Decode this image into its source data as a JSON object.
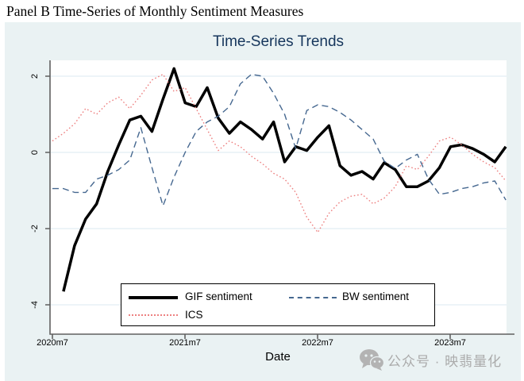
{
  "page": {
    "header": "Panel B Time-Series of Monthly Sentiment Measures"
  },
  "watermark": {
    "icon": "wechat-icon",
    "text": "公众号 · 映翡量化"
  },
  "colors": {
    "chart_background": "#eaf2f3",
    "plot_background": "#ffffff",
    "gridline": "#e2edf3",
    "axis": "#606060",
    "title": "#16365c",
    "gif_sentiment": "#000000",
    "bw_sentiment": "#466890",
    "ics": "#ed8080",
    "watermark": "#ababab"
  },
  "chart_data": {
    "type": "line",
    "title": "Time-Series Trends",
    "xlabel": "Date",
    "ylabel": "",
    "x_ticks": [
      "2020m7",
      "2021m7",
      "2022m7",
      "2023m7"
    ],
    "y_ticks": [
      "2",
      "0",
      "-2",
      "-4"
    ],
    "y_tick_values": [
      2,
      0,
      -2,
      -4
    ],
    "ylim": [
      -4.8,
      2.4
    ],
    "grid": "horizontal",
    "legend_position": "inside-bottom-left",
    "x_months": [
      "2020m7",
      "2020m8",
      "2020m9",
      "2020m10",
      "2020m11",
      "2020m12",
      "2021m1",
      "2021m2",
      "2021m3",
      "2021m4",
      "2021m5",
      "2021m6",
      "2021m7",
      "2021m8",
      "2021m9",
      "2021m10",
      "2021m11",
      "2021m12",
      "2022m1",
      "2022m2",
      "2022m3",
      "2022m4",
      "2022m5",
      "2022m6",
      "2022m7",
      "2022m8",
      "2022m9",
      "2022m10",
      "2022m11",
      "2022m12",
      "2023m1",
      "2023m2",
      "2023m3",
      "2023m4",
      "2023m5",
      "2023m6",
      "2023m7",
      "2023m8",
      "2023m9",
      "2023m10",
      "2023m11",
      "2023m12"
    ],
    "series": [
      {
        "name": "GIF sentiment",
        "style": "solid",
        "color": "#000000",
        "width": 3.5,
        "start_index": 1,
        "values": [
          -3.65,
          -2.45,
          -1.75,
          -1.35,
          -0.5,
          0.2,
          0.85,
          0.95,
          0.55,
          1.4,
          2.2,
          1.3,
          1.2,
          1.7,
          0.9,
          0.5,
          0.8,
          0.6,
          0.35,
          0.8,
          -0.25,
          0.15,
          0.05,
          0.4,
          0.7,
          -0.35,
          -0.6,
          -0.5,
          -0.7,
          -0.27,
          -0.45,
          -0.9,
          -0.9,
          -0.75,
          -0.4,
          0.15,
          0.2,
          0.1,
          -0.05,
          -0.25,
          0.15
        ]
      },
      {
        "name": "BW sentiment",
        "style": "dashed",
        "color": "#466890",
        "width": 1.4,
        "start_index": 0,
        "values": [
          -0.95,
          -0.95,
          -1.05,
          -1.05,
          -0.7,
          -0.6,
          -0.45,
          -0.2,
          0.65,
          -0.4,
          -1.4,
          -0.65,
          0.0,
          0.55,
          0.8,
          0.95,
          1.2,
          1.8,
          2.05,
          2.0,
          1.55,
          1.0,
          0.1,
          1.1,
          1.25,
          1.2,
          1.05,
          0.85,
          0.6,
          0.35,
          -0.23,
          -0.42,
          -0.2,
          -0.05,
          -0.7,
          -1.1,
          -1.05,
          -0.95,
          -0.9,
          -0.8,
          -0.75,
          -1.25
        ]
      },
      {
        "name": "ICS",
        "style": "dotted",
        "color": "#ed8080",
        "width": 1.4,
        "start_index": 0,
        "values": [
          0.3,
          0.5,
          0.75,
          1.15,
          1.0,
          1.3,
          1.45,
          1.15,
          1.5,
          1.9,
          2.05,
          1.6,
          1.7,
          1.15,
          0.6,
          0.05,
          0.3,
          0.15,
          -0.1,
          -0.3,
          -0.55,
          -0.7,
          -1.05,
          -1.7,
          -2.1,
          -1.6,
          -1.3,
          -1.15,
          -1.1,
          -1.35,
          -1.2,
          -0.9,
          -0.35,
          -0.45,
          -0.1,
          0.3,
          0.4,
          0.2,
          -0.05,
          -0.25,
          -0.4,
          -0.75
        ]
      }
    ]
  }
}
